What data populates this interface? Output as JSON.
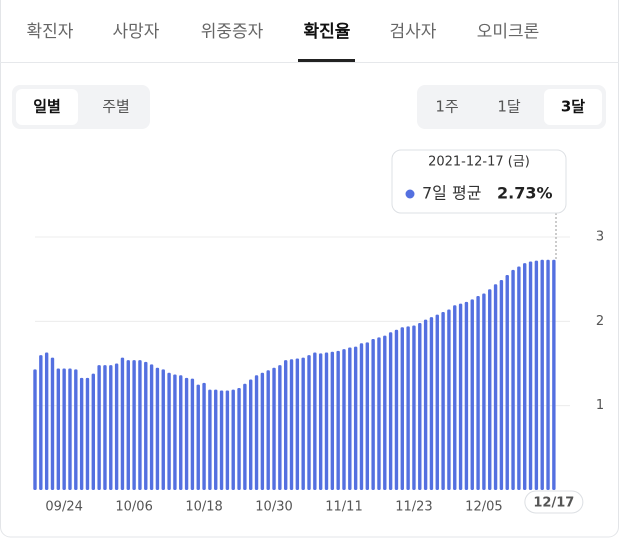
{
  "tabs": [
    "확진자",
    "사망자",
    "위중증자",
    "확진율",
    "검사자",
    "오미크론"
  ],
  "period_toggle": [
    "일별",
    "주별"
  ],
  "range_toggle": [
    "1주",
    "1달",
    "3달"
  ],
  "chart_data": {
    "type": "bar",
    "categories": [
      null,
      null,
      null,
      null,
      null,
      "09/24",
      null,
      null,
      null,
      null,
      null,
      null,
      null,
      null,
      null,
      null,
      null,
      "10/06",
      null,
      null,
      null,
      null,
      null,
      null,
      null,
      null,
      null,
      null,
      null,
      "10/18",
      null,
      null,
      null,
      null,
      null,
      null,
      null,
      null,
      null,
      null,
      null,
      "10/30",
      null,
      null,
      null,
      null,
      null,
      null,
      null,
      null,
      null,
      null,
      null,
      "11/11",
      null,
      null,
      null,
      null,
      null,
      null,
      null,
      null,
      null,
      null,
      null,
      "11/23",
      null,
      null,
      null,
      null,
      null,
      null,
      null,
      null,
      null,
      null,
      null,
      "12/05",
      null,
      null,
      null,
      null,
      null,
      null,
      null,
      null,
      null,
      null,
      null,
      "12/17"
    ],
    "series": [
      {
        "name": "7일 평균",
        "color": "#5470e0",
        "values": [
          1.43,
          1.6,
          1.63,
          1.57,
          1.44,
          1.44,
          1.44,
          1.43,
          1.33,
          1.33,
          1.38,
          1.48,
          1.48,
          1.48,
          1.5,
          1.57,
          1.54,
          1.54,
          1.54,
          1.52,
          1.49,
          1.45,
          1.43,
          1.39,
          1.37,
          1.36,
          1.33,
          1.32,
          1.25,
          1.27,
          1.19,
          1.19,
          1.18,
          1.18,
          1.19,
          1.21,
          1.26,
          1.31,
          1.36,
          1.39,
          1.42,
          1.45,
          1.48,
          1.54,
          1.55,
          1.56,
          1.57,
          1.6,
          1.63,
          1.62,
          1.63,
          1.64,
          1.65,
          1.67,
          1.69,
          1.7,
          1.74,
          1.75,
          1.79,
          1.81,
          1.83,
          1.87,
          1.9,
          1.93,
          1.94,
          1.95,
          1.98,
          2.02,
          2.05,
          2.08,
          2.11,
          2.14,
          2.19,
          2.21,
          2.23,
          2.26,
          2.3,
          2.33,
          2.38,
          2.44,
          2.49,
          2.55,
          2.61,
          2.65,
          2.69,
          2.71,
          2.72,
          2.73,
          2.73,
          2.73
        ]
      }
    ],
    "ylim": [
      0,
      3
    ],
    "yticks": [
      1,
      2,
      3
    ],
    "grid": true,
    "tooltip": {
      "date": "2021-12-17 (금)",
      "value_label": "2.73%"
    }
  }
}
